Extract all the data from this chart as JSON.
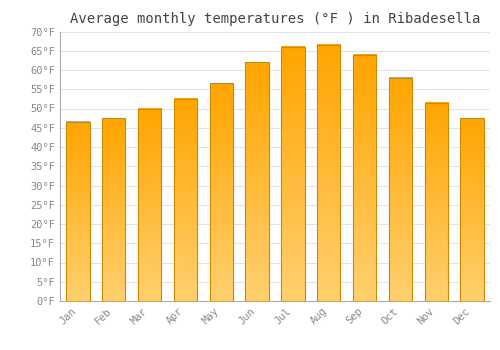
{
  "title": "Average monthly temperatures (°F ) in Ribadesella",
  "months": [
    "Jan",
    "Feb",
    "Mar",
    "Apr",
    "May",
    "Jun",
    "Jul",
    "Aug",
    "Sep",
    "Oct",
    "Nov",
    "Dec"
  ],
  "values": [
    46.5,
    47.5,
    50.0,
    52.5,
    56.5,
    62.0,
    66.0,
    66.5,
    64.0,
    58.0,
    51.5,
    47.5
  ],
  "bar_color_main": "#FFA500",
  "bar_color_light": "#FFD070",
  "bar_edge_color": "#CC8800",
  "ylim": [
    0,
    70
  ],
  "yticks": [
    0,
    5,
    10,
    15,
    20,
    25,
    30,
    35,
    40,
    45,
    50,
    55,
    60,
    65,
    70
  ],
  "ytick_labels": [
    "0°F",
    "5°F",
    "10°F",
    "15°F",
    "20°F",
    "25°F",
    "30°F",
    "35°F",
    "40°F",
    "45°F",
    "50°F",
    "55°F",
    "60°F",
    "65°F",
    "70°F"
  ],
  "background_color": "#FFFFFF",
  "grid_color": "#DDDDDD",
  "title_fontsize": 10,
  "tick_fontsize": 7.5,
  "bar_edge_width": 0.8
}
